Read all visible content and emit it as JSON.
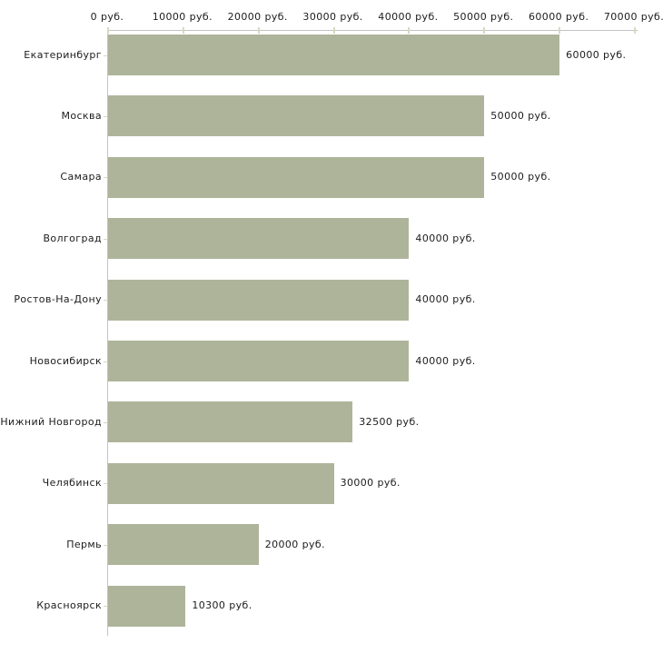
{
  "chart_data": {
    "type": "bar",
    "orientation": "horizontal",
    "title": "",
    "categories": [
      "Екатеринбург",
      "Москва",
      "Самара",
      "Волгоград",
      "Ростов-На-Дону",
      "Новосибирск",
      "Нижний Новгород",
      "Челябинск",
      "Пермь",
      "Красноярск"
    ],
    "values": [
      60000,
      50000,
      50000,
      40000,
      40000,
      40000,
      32500,
      30000,
      20000,
      10300
    ],
    "value_labels": [
      "60000 руб.",
      "50000 руб.",
      "50000 руб.",
      "40000 руб.",
      "40000 руб.",
      "40000 руб.",
      "32500 руб.",
      "30000 руб.",
      "20000 руб.",
      "10300 руб."
    ],
    "unit": "руб.",
    "x_axis": {
      "position": "top",
      "min": 0,
      "max": 70000,
      "tick_interval": 10000,
      "tick_labels": [
        "0 руб.",
        "10000 руб.",
        "20000 руб.",
        "30000 руб.",
        "40000 руб.",
        "50000 руб.",
        "60000 руб.",
        "70000 руб."
      ]
    },
    "grid": false,
    "legend": false,
    "colors": {
      "bar": "#aeb49a",
      "axis_line": "#c4c4c4",
      "tick": "#d8d8c0",
      "text": "#1c1c1c",
      "background": "#ffffff"
    }
  }
}
